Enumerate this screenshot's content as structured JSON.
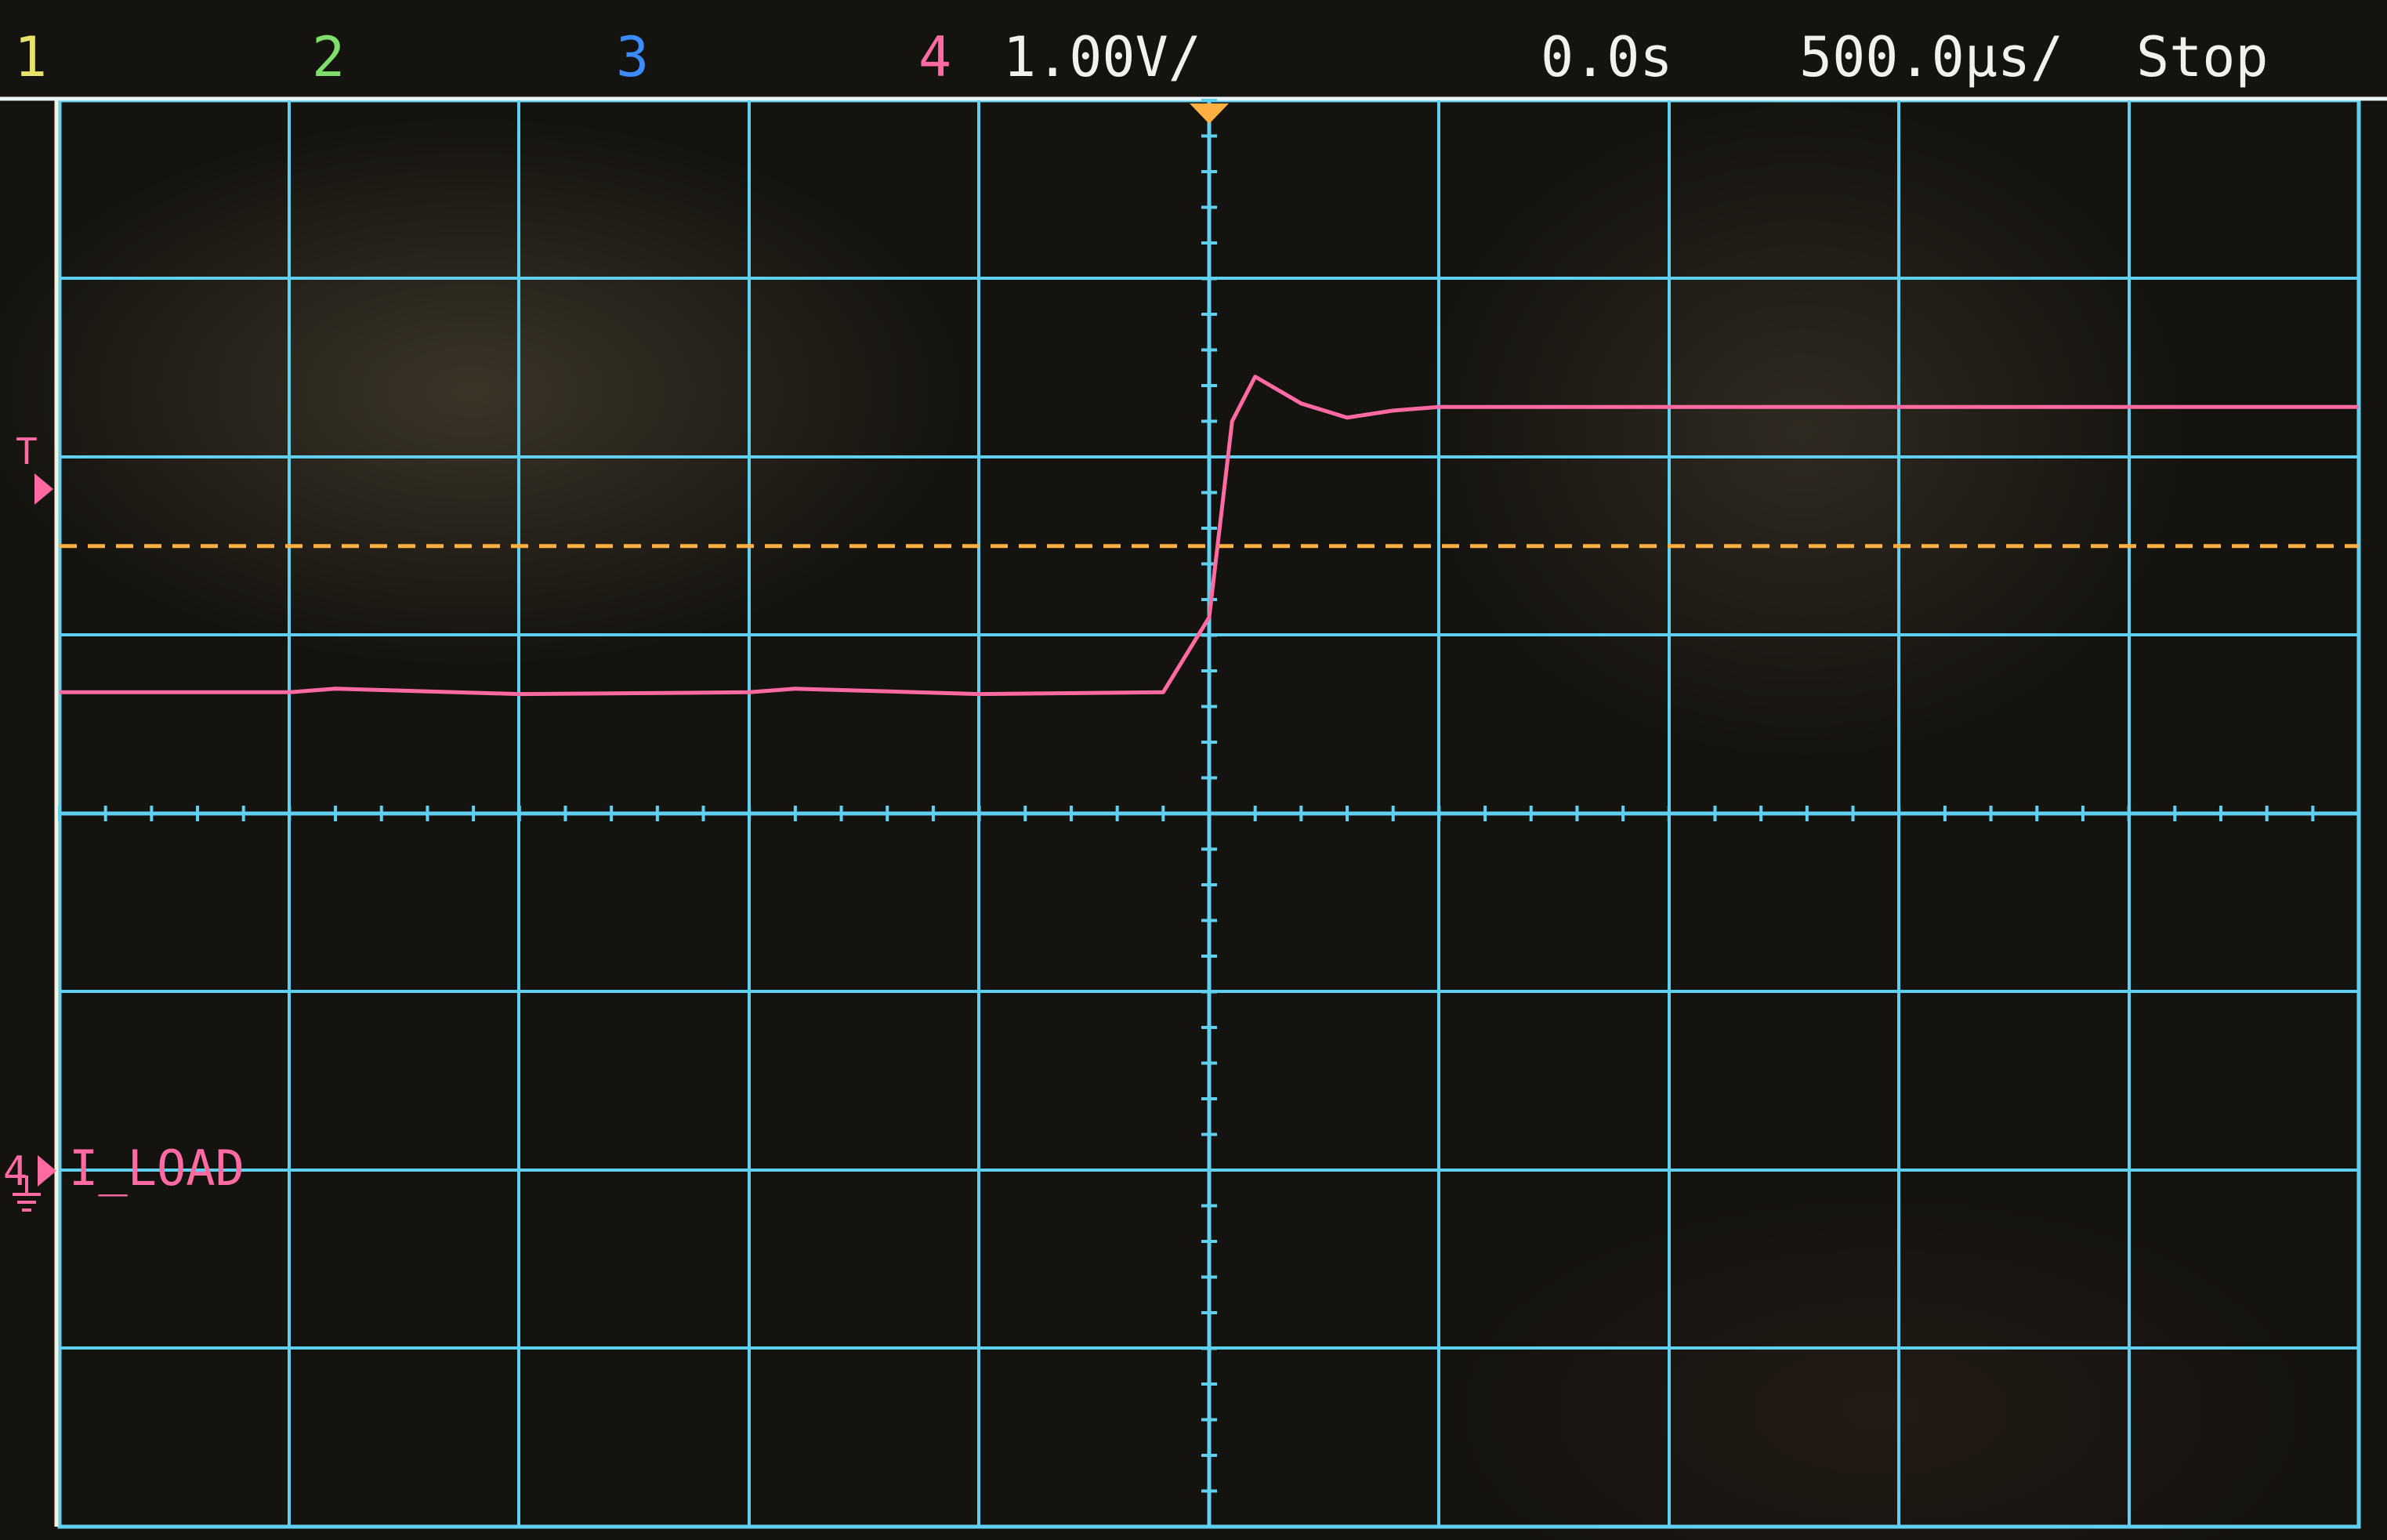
{
  "status_bar": {
    "ch1": "1",
    "ch2": "2",
    "ch3": "3",
    "ch4": "4",
    "vertical_scale": "1.00V/",
    "time_offset": "0.0s",
    "time_scale": "500.0µs/",
    "run_state": "Stop"
  },
  "colors": {
    "ch1": "#e8e26a",
    "ch2": "#7ee06a",
    "ch3": "#3b8cff",
    "ch4": "#ff6aa0",
    "grid": "#5fd0f0",
    "trigger_level": "#ffb040",
    "text": "#f2f2ec"
  },
  "markers": {
    "trigger_glyph": "T",
    "channel4_ground_marker": "4",
    "channel4_label": "I_LOAD"
  },
  "chart_data": {
    "type": "line",
    "series": [
      {
        "name": "I_LOAD",
        "channel": 4,
        "x": [
          -2.5,
          -2.0,
          -1.9,
          -1.5,
          -1.0,
          -0.9,
          -0.5,
          -0.1,
          0.0,
          0.05,
          0.1,
          0.2,
          0.3,
          0.4,
          0.5,
          1.0,
          2.5
        ],
        "y": [
          0.68,
          0.68,
          0.7,
          0.67,
          0.68,
          0.7,
          0.67,
          0.68,
          1.1,
          2.2,
          2.45,
          2.3,
          2.22,
          2.26,
          2.28,
          2.28,
          2.28
        ]
      }
    ],
    "x_range": [
      -2.5,
      2.5
    ],
    "y_range": [
      -4,
      4
    ],
    "trigger_level": 1.5,
    "grid": true
  }
}
